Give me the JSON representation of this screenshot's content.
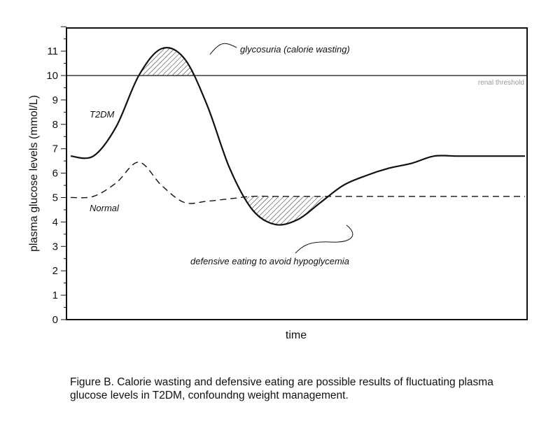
{
  "chart_data": {
    "type": "line",
    "xlabel": "time",
    "ylabel": "plasma glucose levels (mmol/L)",
    "ylim": [
      0,
      12
    ],
    "yticks": [
      0,
      1,
      2,
      3,
      4,
      5,
      6,
      7,
      8,
      9,
      10,
      11
    ],
    "grid": false,
    "x": [
      0,
      0.05,
      0.1,
      0.15,
      0.2,
      0.25,
      0.3,
      0.35,
      0.4,
      0.45,
      0.5,
      0.55,
      0.6,
      0.65,
      0.7,
      0.75,
      0.8,
      0.85,
      0.9,
      0.95,
      1.0
    ],
    "series": [
      {
        "name": "T2DM",
        "values": [
          6.7,
          6.7,
          7.9,
          10.0,
          11.1,
          10.7,
          8.8,
          6.2,
          4.5,
          3.9,
          4.1,
          4.8,
          5.5,
          5.9,
          6.2,
          6.4,
          6.7,
          6.7,
          6.7,
          6.7,
          6.7
        ],
        "style": "solid"
      },
      {
        "name": "Normal",
        "values": [
          5.0,
          5.05,
          5.6,
          6.45,
          5.5,
          4.8,
          4.85,
          4.95,
          5.05,
          5.05,
          5.05,
          5.05,
          5.05,
          5.05,
          5.05,
          5.05,
          5.05,
          5.05,
          5.05,
          5.05,
          5.05
        ],
        "style": "dashed"
      }
    ],
    "reference_line": {
      "y": 10,
      "label": "renal threshold"
    },
    "annotations": [
      {
        "text": "glycosuria (calorie wasting)"
      },
      {
        "text": "defensive eating to avoid hypoglycemia"
      }
    ]
  },
  "caption_lines": [
    "Figure B.  Calorie wasting and defensive eating are possible results of fluctuating plasma",
    "glucose levels in T2DM, confoundng weight management."
  ]
}
